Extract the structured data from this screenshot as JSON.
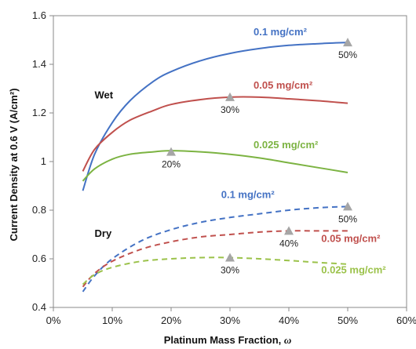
{
  "chart_data": {
    "type": "line",
    "xlabel": "Platinum Mass Fraction, ",
    "xlabel_symbol": "ω",
    "ylabel": "Current Density at 0.6 V (A/cm²)",
    "xlim": [
      0,
      0.6
    ],
    "ylim": [
      0.4,
      1.6
    ],
    "x_ticks": [
      0,
      0.1,
      0.2,
      0.3,
      0.4,
      0.5,
      0.6
    ],
    "x_tick_labels": [
      "0%",
      "10%",
      "20%",
      "30%",
      "40%",
      "50%",
      "60%"
    ],
    "y_ticks": [
      0.4,
      0.6,
      0.8,
      1.0,
      1.2,
      1.4,
      1.6
    ],
    "y_tick_labels": [
      "0.4",
      "0.6",
      "0.8",
      "1",
      "1.2",
      "1.4",
      "1.6"
    ],
    "grid": false,
    "region_labels": [
      {
        "text": "Wet",
        "x": 0.07,
        "y": 1.26
      },
      {
        "text": "Dry",
        "x": 0.07,
        "y": 0.69
      }
    ],
    "series": [
      {
        "name": "0.1 mg/cm²",
        "condition": "Wet",
        "color": "#4472c4",
        "dashed": false,
        "x": [
          0.05,
          0.07,
          0.1,
          0.13,
          0.17,
          0.2,
          0.25,
          0.3,
          0.35,
          0.4,
          0.45,
          0.5
        ],
        "y": [
          0.88,
          1.03,
          1.16,
          1.25,
          1.33,
          1.37,
          1.415,
          1.445,
          1.465,
          1.478,
          1.485,
          1.49
        ],
        "marker": {
          "x": 0.5,
          "y": 1.49,
          "label": "50%"
        },
        "label_pos": {
          "x": 0.34,
          "y": 1.52
        }
      },
      {
        "name": "0.05 mg/cm²",
        "condition": "Wet",
        "color": "#c0504d",
        "dashed": false,
        "x": [
          0.05,
          0.07,
          0.1,
          0.13,
          0.17,
          0.2,
          0.25,
          0.3,
          0.35,
          0.4,
          0.45,
          0.5
        ],
        "y": [
          0.96,
          1.05,
          1.12,
          1.17,
          1.21,
          1.235,
          1.255,
          1.265,
          1.265,
          1.258,
          1.25,
          1.24
        ],
        "marker": {
          "x": 0.3,
          "y": 1.265,
          "label": "30%"
        },
        "label_pos": {
          "x": 0.34,
          "y": 1.3
        }
      },
      {
        "name": "0.025 mg/cm²",
        "condition": "Wet",
        "color": "#7cb342",
        "dashed": false,
        "x": [
          0.05,
          0.07,
          0.1,
          0.13,
          0.17,
          0.2,
          0.25,
          0.3,
          0.35,
          0.4,
          0.45,
          0.5
        ],
        "y": [
          0.92,
          0.97,
          1.01,
          1.03,
          1.04,
          1.045,
          1.04,
          1.03,
          1.015,
          0.995,
          0.975,
          0.955
        ],
        "marker": {
          "x": 0.2,
          "y": 1.04,
          "label": "20%"
        },
        "label_pos": {
          "x": 0.34,
          "y": 1.055
        }
      },
      {
        "name": "0.1 mg/cm²",
        "condition": "Dry",
        "color": "#4472c4",
        "dashed": true,
        "x": [
          0.05,
          0.07,
          0.1,
          0.15,
          0.2,
          0.25,
          0.3,
          0.35,
          0.4,
          0.45,
          0.5
        ],
        "y": [
          0.465,
          0.53,
          0.6,
          0.675,
          0.72,
          0.75,
          0.77,
          0.785,
          0.8,
          0.81,
          0.815
        ],
        "marker": {
          "x": 0.5,
          "y": 0.815,
          "label": "50%"
        },
        "label_pos": {
          "x": 0.285,
          "y": 0.85
        }
      },
      {
        "name": "0.05 mg/cm²",
        "condition": "Dry",
        "color": "#c0504d",
        "dashed": true,
        "x": [
          0.05,
          0.07,
          0.1,
          0.15,
          0.2,
          0.25,
          0.3,
          0.35,
          0.4,
          0.45,
          0.5
        ],
        "y": [
          0.485,
          0.54,
          0.59,
          0.64,
          0.67,
          0.69,
          0.7,
          0.71,
          0.715,
          0.715,
          0.715
        ],
        "marker": {
          "x": 0.4,
          "y": 0.715,
          "label": "40%"
        },
        "label_pos": {
          "x": 0.455,
          "y": 0.67
        }
      },
      {
        "name": "0.025 mg/cm²",
        "condition": "Dry",
        "color": "#9bc24a",
        "dashed": true,
        "x": [
          0.05,
          0.07,
          0.1,
          0.15,
          0.2,
          0.25,
          0.3,
          0.35,
          0.4,
          0.45,
          0.5
        ],
        "y": [
          0.495,
          0.535,
          0.565,
          0.59,
          0.6,
          0.605,
          0.605,
          0.6,
          0.593,
          0.585,
          0.578
        ],
        "marker": {
          "x": 0.3,
          "y": 0.605,
          "label": "30%"
        },
        "label_pos": {
          "x": 0.455,
          "y": 0.54
        }
      }
    ]
  }
}
